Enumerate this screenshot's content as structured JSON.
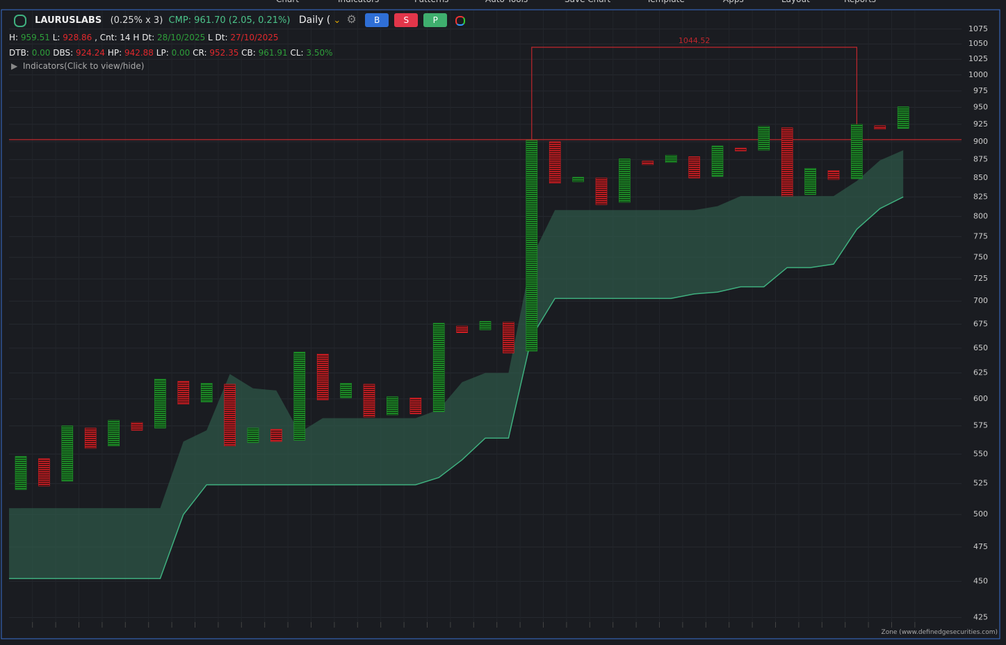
{
  "menu": [
    "Chart",
    "Indicators",
    "Patterns",
    "Auto Tools",
    "Save Chart",
    "Template",
    "Apps",
    "Layout",
    "Reports"
  ],
  "header": {
    "symbol": "LAURUSLABS",
    "box": "(0.25% x 3)",
    "cmp": "CMP: 961.70 (2.05, 0.21%)",
    "interval": "Daily (",
    "buttons": [
      "B",
      "S",
      "P"
    ],
    "stats1": [
      {
        "label": "H:",
        "value": "959.51",
        "color": "#2e9e3a"
      },
      {
        "label": "L:",
        "value": "928.86",
        "color": "#e0282c"
      },
      {
        "label": ", Cnt: 14 H Dt:",
        "value": "28/10/2025",
        "color": "#2e9e3a"
      },
      {
        "label": "L Dt:",
        "value": "27/10/2025",
        "color": "#e0282c"
      }
    ],
    "stats2": [
      {
        "label": "DTB:",
        "value": "0.00",
        "color": "#2e9e3a"
      },
      {
        "label": "DBS:",
        "value": "924.24",
        "color": "#e0282c"
      },
      {
        "label": "HP:",
        "value": "942.88",
        "color": "#e0282c"
      },
      {
        "label": "LP:",
        "value": "0.00",
        "color": "#2e9e3a"
      },
      {
        "label": "CR:",
        "value": "952.35",
        "color": "#e0282c"
      },
      {
        "label": "CB:",
        "value": "961.91",
        "color": "#2e9e3a"
      },
      {
        "label": "CL:",
        "value": "3.50%",
        "color": "#2e9e3a"
      }
    ],
    "indicators": "Indicators(Click to view/hide)",
    "footer": "Zone (www.definedgesecurities.com)"
  },
  "chart_data": {
    "type": "point-and-figure",
    "log_scale": true,
    "grid": true,
    "x_color": "#1f9a2a",
    "o_color": "#d91f25",
    "cloud_color": "#2f5a4a",
    "cloud_line_color": "#3fb07f",
    "line_color": "#c0272d",
    "ylim": [
      422,
      1107
    ],
    "yticks": [
      425,
      450,
      475,
      500,
      525,
      550,
      575,
      600,
      625,
      650,
      675,
      700,
      725,
      750,
      775,
      800,
      825,
      850,
      875,
      900,
      925,
      950,
      975,
      1000,
      1025,
      1050,
      1075
    ],
    "columns": [
      {
        "kind": "X",
        "top": 548,
        "bottom": 520
      },
      {
        "kind": "O",
        "top": 546,
        "bottom": 523
      },
      {
        "kind": "X",
        "top": 575,
        "bottom": 527
      },
      {
        "kind": "O",
        "top": 573,
        "bottom": 555
      },
      {
        "kind": "X",
        "top": 580,
        "bottom": 557
      },
      {
        "kind": "O",
        "top": 578,
        "bottom": 571
      },
      {
        "kind": "X",
        "top": 619,
        "bottom": 573
      },
      {
        "kind": "O",
        "top": 617,
        "bottom": 595
      },
      {
        "kind": "X",
        "top": 615,
        "bottom": 597
      },
      {
        "kind": "O",
        "top": 614,
        "bottom": 557
      },
      {
        "kind": "X",
        "top": 573,
        "bottom": 560
      },
      {
        "kind": "O",
        "top": 572,
        "bottom": 561
      },
      {
        "kind": "X",
        "top": 646,
        "bottom": 562
      },
      {
        "kind": "O",
        "top": 644,
        "bottom": 599
      },
      {
        "kind": "X",
        "top": 615,
        "bottom": 601
      },
      {
        "kind": "O",
        "top": 614,
        "bottom": 583
      },
      {
        "kind": "X",
        "top": 602,
        "bottom": 585
      },
      {
        "kind": "O",
        "top": 601,
        "bottom": 586
      },
      {
        "kind": "X",
        "top": 676,
        "bottom": 588
      },
      {
        "kind": "O",
        "top": 673,
        "bottom": 666
      },
      {
        "kind": "X",
        "top": 678,
        "bottom": 669
      },
      {
        "kind": "O",
        "top": 677,
        "bottom": 645
      },
      {
        "kind": "X",
        "top": 902,
        "bottom": 647
      },
      {
        "kind": "O",
        "top": 900,
        "bottom": 843
      },
      {
        "kind": "X",
        "top": 851,
        "bottom": 845
      },
      {
        "kind": "O",
        "top": 850,
        "bottom": 815
      },
      {
        "kind": "X",
        "top": 876,
        "bottom": 818
      },
      {
        "kind": "O",
        "top": 873,
        "bottom": 868
      },
      {
        "kind": "X",
        "top": 881,
        "bottom": 871
      },
      {
        "kind": "O",
        "top": 879,
        "bottom": 850
      },
      {
        "kind": "X",
        "top": 894,
        "bottom": 852
      },
      {
        "kind": "O",
        "top": 891,
        "bottom": 887
      },
      {
        "kind": "X",
        "top": 922,
        "bottom": 888
      },
      {
        "kind": "O",
        "top": 920,
        "bottom": 826
      },
      {
        "kind": "X",
        "top": 863,
        "bottom": 828
      },
      {
        "kind": "O",
        "top": 860,
        "bottom": 848
      },
      {
        "kind": "X",
        "top": 925,
        "bottom": 849
      },
      {
        "kind": "O",
        "top": 923,
        "bottom": 918
      },
      {
        "kind": "X",
        "top": 951,
        "bottom": 919
      }
    ],
    "cloud": {
      "upper": [
        505,
        505,
        505,
        505,
        505,
        505,
        505,
        561,
        571,
        624,
        610,
        608,
        569,
        582,
        582,
        582,
        582,
        582,
        590,
        616,
        625,
        625,
        750,
        808,
        808,
        808,
        808,
        808,
        808,
        808,
        813,
        826,
        826,
        826,
        826,
        826,
        846,
        874,
        888
      ],
      "lower": [
        452,
        452,
        452,
        452,
        452,
        452,
        452,
        500,
        524,
        524,
        524,
        524,
        524,
        524,
        524,
        524,
        524,
        524,
        530,
        545,
        564,
        564,
        662,
        703,
        703,
        703,
        703,
        703,
        703,
        708,
        710,
        716,
        716,
        738,
        738,
        742,
        784,
        810,
        825
      ]
    },
    "reference_line": 903,
    "target": 1044.52
  }
}
